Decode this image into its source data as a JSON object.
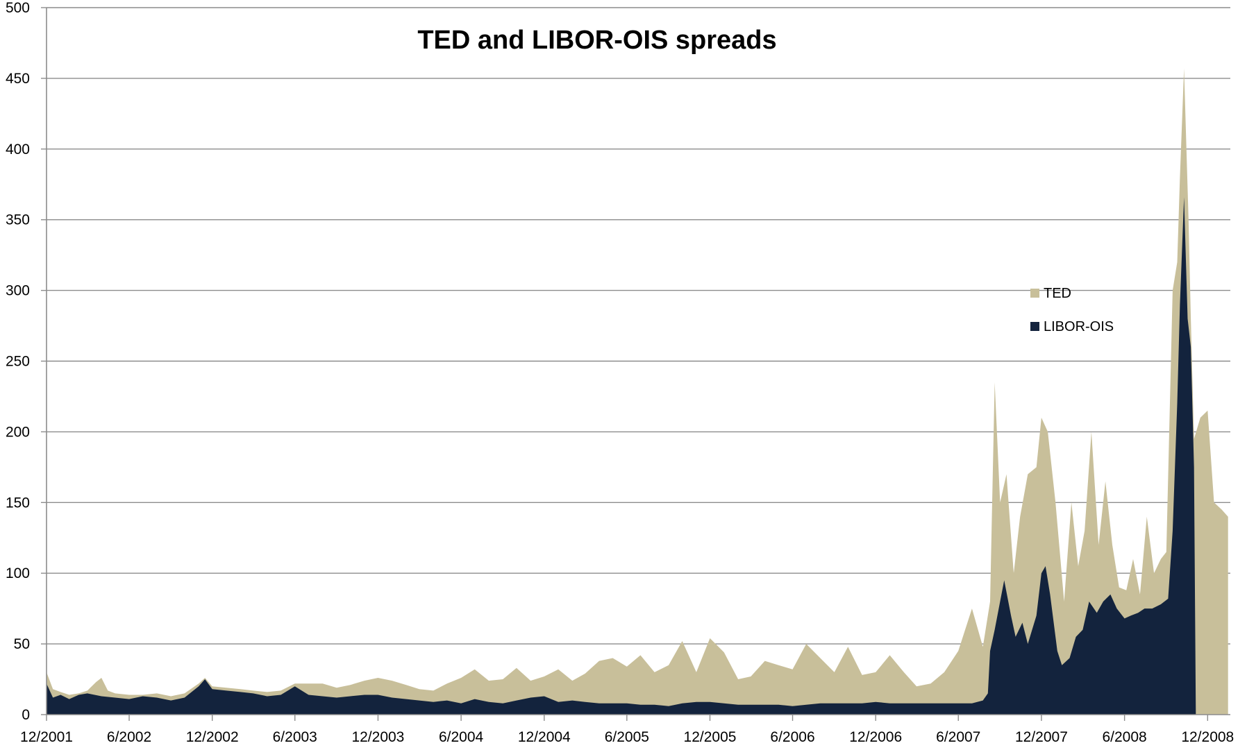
{
  "chart_data": {
    "type": "area",
    "title": "TED and LIBOR-OIS  spreads",
    "xlabel": "",
    "ylabel": "",
    "ylim": [
      0,
      500
    ],
    "yticks": [
      0,
      50,
      100,
      150,
      200,
      250,
      300,
      350,
      400,
      450,
      500
    ],
    "xlim": [
      "2001-12-01",
      "2009-01-20"
    ],
    "xticks": [
      {
        "label": "12/2001",
        "date": "2001-12-01"
      },
      {
        "label": "6/2002",
        "date": "2002-06-01"
      },
      {
        "label": "12/2002",
        "date": "2002-12-01"
      },
      {
        "label": "6/2003",
        "date": "2003-06-01"
      },
      {
        "label": "12/2003",
        "date": "2003-12-01"
      },
      {
        "label": "6/2004",
        "date": "2004-06-01"
      },
      {
        "label": "12/2004",
        "date": "2004-12-01"
      },
      {
        "label": "6/2005",
        "date": "2005-06-01"
      },
      {
        "label": "12/2005",
        "date": "2005-12-01"
      },
      {
        "label": "6/2006",
        "date": "2006-06-01"
      },
      {
        "label": "12/2006",
        "date": "2006-12-01"
      },
      {
        "label": "6/2007",
        "date": "2007-06-01"
      },
      {
        "label": "12/2007",
        "date": "2007-12-01"
      },
      {
        "label": "6/2008",
        "date": "2008-06-01"
      },
      {
        "label": "12/2008",
        "date": "2008-12-01"
      }
    ],
    "grid": true,
    "legend_position": "right",
    "series": [
      {
        "name": "TED",
        "color": "#c8bf9a",
        "points": [
          [
            "2001-12-01",
            30
          ],
          [
            "2001-12-15",
            18
          ],
          [
            "2002-01-01",
            16
          ],
          [
            "2002-01-20",
            14
          ],
          [
            "2002-02-10",
            15
          ],
          [
            "2002-03-01",
            17
          ],
          [
            "2002-03-20",
            23
          ],
          [
            "2002-04-01",
            26
          ],
          [
            "2002-04-15",
            17
          ],
          [
            "2002-05-01",
            15
          ],
          [
            "2002-06-01",
            14
          ],
          [
            "2002-07-01",
            14
          ],
          [
            "2002-08-01",
            15
          ],
          [
            "2002-09-01",
            13
          ],
          [
            "2002-10-01",
            15
          ],
          [
            "2002-11-01",
            22
          ],
          [
            "2002-11-15",
            26
          ],
          [
            "2002-12-01",
            20
          ],
          [
            "2003-01-01",
            19
          ],
          [
            "2003-02-01",
            18
          ],
          [
            "2003-03-01",
            17
          ],
          [
            "2003-04-01",
            16
          ],
          [
            "2003-05-01",
            17
          ],
          [
            "2003-06-01",
            22
          ],
          [
            "2003-07-01",
            22
          ],
          [
            "2003-08-01",
            22
          ],
          [
            "2003-09-01",
            19
          ],
          [
            "2003-10-01",
            21
          ],
          [
            "2003-11-01",
            24
          ],
          [
            "2003-12-01",
            26
          ],
          [
            "2004-01-01",
            24
          ],
          [
            "2004-02-01",
            21
          ],
          [
            "2004-03-01",
            18
          ],
          [
            "2004-04-01",
            17
          ],
          [
            "2004-05-01",
            22
          ],
          [
            "2004-06-01",
            26
          ],
          [
            "2004-07-01",
            32
          ],
          [
            "2004-08-01",
            24
          ],
          [
            "2004-09-01",
            25
          ],
          [
            "2004-10-01",
            33
          ],
          [
            "2004-11-01",
            24
          ],
          [
            "2004-12-01",
            27
          ],
          [
            "2005-01-01",
            32
          ],
          [
            "2005-02-01",
            24
          ],
          [
            "2005-03-01",
            29
          ],
          [
            "2005-04-01",
            38
          ],
          [
            "2005-05-01",
            40
          ],
          [
            "2005-06-01",
            34
          ],
          [
            "2005-07-01",
            42
          ],
          [
            "2005-08-01",
            30
          ],
          [
            "2005-09-01",
            35
          ],
          [
            "2005-10-01",
            52
          ],
          [
            "2005-11-01",
            30
          ],
          [
            "2005-12-01",
            54
          ],
          [
            "2006-01-01",
            44
          ],
          [
            "2006-02-01",
            25
          ],
          [
            "2006-03-01",
            27
          ],
          [
            "2006-04-01",
            38
          ],
          [
            "2006-05-01",
            35
          ],
          [
            "2006-06-01",
            32
          ],
          [
            "2006-07-01",
            50
          ],
          [
            "2006-08-01",
            40
          ],
          [
            "2006-09-01",
            30
          ],
          [
            "2006-10-01",
            48
          ],
          [
            "2006-11-01",
            28
          ],
          [
            "2006-12-01",
            30
          ],
          [
            "2007-01-01",
            42
          ],
          [
            "2007-02-01",
            30
          ],
          [
            "2007-03-01",
            20
          ],
          [
            "2007-04-01",
            22
          ],
          [
            "2007-05-01",
            30
          ],
          [
            "2007-06-01",
            45
          ],
          [
            "2007-07-01",
            75
          ],
          [
            "2007-07-25",
            48
          ],
          [
            "2007-08-10",
            80
          ],
          [
            "2007-08-20",
            235
          ],
          [
            "2007-09-01",
            150
          ],
          [
            "2007-09-15",
            170
          ],
          [
            "2007-10-01",
            100
          ],
          [
            "2007-10-15",
            140
          ],
          [
            "2007-11-01",
            170
          ],
          [
            "2007-11-20",
            175
          ],
          [
            "2007-12-01",
            210
          ],
          [
            "2007-12-15",
            200
          ],
          [
            "2008-01-01",
            150
          ],
          [
            "2008-01-20",
            80
          ],
          [
            "2008-02-05",
            150
          ],
          [
            "2008-02-20",
            105
          ],
          [
            "2008-03-05",
            130
          ],
          [
            "2008-03-20",
            200
          ],
          [
            "2008-04-05",
            120
          ],
          [
            "2008-04-20",
            165
          ],
          [
            "2008-05-05",
            120
          ],
          [
            "2008-05-20",
            90
          ],
          [
            "2008-06-05",
            88
          ],
          [
            "2008-06-20",
            110
          ],
          [
            "2008-07-05",
            85
          ],
          [
            "2008-07-20",
            140
          ],
          [
            "2008-08-05",
            100
          ],
          [
            "2008-08-20",
            110
          ],
          [
            "2008-09-01",
            115
          ],
          [
            "2008-09-15",
            300
          ],
          [
            "2008-09-25",
            320
          ],
          [
            "2008-10-01",
            380
          ],
          [
            "2008-10-10",
            457
          ],
          [
            "2008-10-20",
            350
          ],
          [
            "2008-10-25",
            280
          ],
          [
            "2008-11-01",
            195
          ],
          [
            "2008-11-15",
            210
          ],
          [
            "2008-12-01",
            215
          ],
          [
            "2008-12-15",
            150
          ],
          [
            "2009-01-01",
            145
          ],
          [
            "2009-01-15",
            140
          ]
        ]
      },
      {
        "name": "LIBOR-OIS",
        "color": "#13233d",
        "points": [
          [
            "2001-12-01",
            22
          ],
          [
            "2001-12-15",
            12
          ],
          [
            "2002-01-01",
            14
          ],
          [
            "2002-01-20",
            11
          ],
          [
            "2002-02-10",
            14
          ],
          [
            "2002-03-01",
            15
          ],
          [
            "2002-04-01",
            13
          ],
          [
            "2002-05-01",
            12
          ],
          [
            "2002-06-01",
            11
          ],
          [
            "2002-07-01",
            13
          ],
          [
            "2002-08-01",
            12
          ],
          [
            "2002-09-01",
            10
          ],
          [
            "2002-10-01",
            12
          ],
          [
            "2002-11-01",
            20
          ],
          [
            "2002-11-15",
            25
          ],
          [
            "2002-12-01",
            18
          ],
          [
            "2003-01-01",
            17
          ],
          [
            "2003-02-01",
            16
          ],
          [
            "2003-03-01",
            15
          ],
          [
            "2003-04-01",
            13
          ],
          [
            "2003-05-01",
            14
          ],
          [
            "2003-06-01",
            20
          ],
          [
            "2003-07-01",
            14
          ],
          [
            "2003-08-01",
            13
          ],
          [
            "2003-09-01",
            12
          ],
          [
            "2003-10-01",
            13
          ],
          [
            "2003-11-01",
            14
          ],
          [
            "2003-12-01",
            14
          ],
          [
            "2004-01-01",
            12
          ],
          [
            "2004-02-01",
            11
          ],
          [
            "2004-03-01",
            10
          ],
          [
            "2004-04-01",
            9
          ],
          [
            "2004-05-01",
            10
          ],
          [
            "2004-06-01",
            8
          ],
          [
            "2004-07-01",
            11
          ],
          [
            "2004-08-01",
            9
          ],
          [
            "2004-09-01",
            8
          ],
          [
            "2004-10-01",
            10
          ],
          [
            "2004-11-01",
            12
          ],
          [
            "2004-12-01",
            13
          ],
          [
            "2005-01-01",
            9
          ],
          [
            "2005-02-01",
            10
          ],
          [
            "2005-03-01",
            9
          ],
          [
            "2005-04-01",
            8
          ],
          [
            "2005-05-01",
            8
          ],
          [
            "2005-06-01",
            8
          ],
          [
            "2005-07-01",
            7
          ],
          [
            "2005-08-01",
            7
          ],
          [
            "2005-09-01",
            6
          ],
          [
            "2005-10-01",
            8
          ],
          [
            "2005-11-01",
            9
          ],
          [
            "2005-12-01",
            9
          ],
          [
            "2006-01-01",
            8
          ],
          [
            "2006-02-01",
            7
          ],
          [
            "2006-03-01",
            7
          ],
          [
            "2006-04-01",
            7
          ],
          [
            "2006-05-01",
            7
          ],
          [
            "2006-06-01",
            6
          ],
          [
            "2006-07-01",
            7
          ],
          [
            "2006-08-01",
            8
          ],
          [
            "2006-09-01",
            8
          ],
          [
            "2006-10-01",
            8
          ],
          [
            "2006-11-01",
            8
          ],
          [
            "2006-12-01",
            9
          ],
          [
            "2007-01-01",
            8
          ],
          [
            "2007-02-01",
            8
          ],
          [
            "2007-03-01",
            8
          ],
          [
            "2007-04-01",
            8
          ],
          [
            "2007-05-01",
            8
          ],
          [
            "2007-06-01",
            8
          ],
          [
            "2007-07-01",
            8
          ],
          [
            "2007-07-25",
            10
          ],
          [
            "2007-08-05",
            15
          ],
          [
            "2007-08-10",
            45
          ],
          [
            "2007-08-20",
            60
          ],
          [
            "2007-09-01",
            80
          ],
          [
            "2007-09-10",
            95
          ],
          [
            "2007-09-25",
            70
          ],
          [
            "2007-10-05",
            55
          ],
          [
            "2007-10-20",
            65
          ],
          [
            "2007-11-01",
            50
          ],
          [
            "2007-11-20",
            70
          ],
          [
            "2007-12-01",
            100
          ],
          [
            "2007-12-10",
            105
          ],
          [
            "2007-12-20",
            85
          ],
          [
            "2008-01-05",
            45
          ],
          [
            "2008-01-15",
            35
          ],
          [
            "2008-02-01",
            40
          ],
          [
            "2008-02-15",
            55
          ],
          [
            "2008-03-01",
            60
          ],
          [
            "2008-03-15",
            80
          ],
          [
            "2008-04-01",
            72
          ],
          [
            "2008-04-15",
            80
          ],
          [
            "2008-05-01",
            85
          ],
          [
            "2008-05-15",
            75
          ],
          [
            "2008-06-01",
            68
          ],
          [
            "2008-06-15",
            70
          ],
          [
            "2008-07-01",
            72
          ],
          [
            "2008-07-15",
            75
          ],
          [
            "2008-08-01",
            75
          ],
          [
            "2008-08-20",
            78
          ],
          [
            "2008-09-05",
            82
          ],
          [
            "2008-09-15",
            130
          ],
          [
            "2008-09-25",
            220
          ],
          [
            "2008-10-01",
            290
          ],
          [
            "2008-10-10",
            366
          ],
          [
            "2008-10-18",
            280
          ],
          [
            "2008-10-25",
            260
          ],
          [
            "2008-11-01",
            175
          ],
          [
            "2008-11-05",
            0
          ]
        ]
      }
    ]
  }
}
